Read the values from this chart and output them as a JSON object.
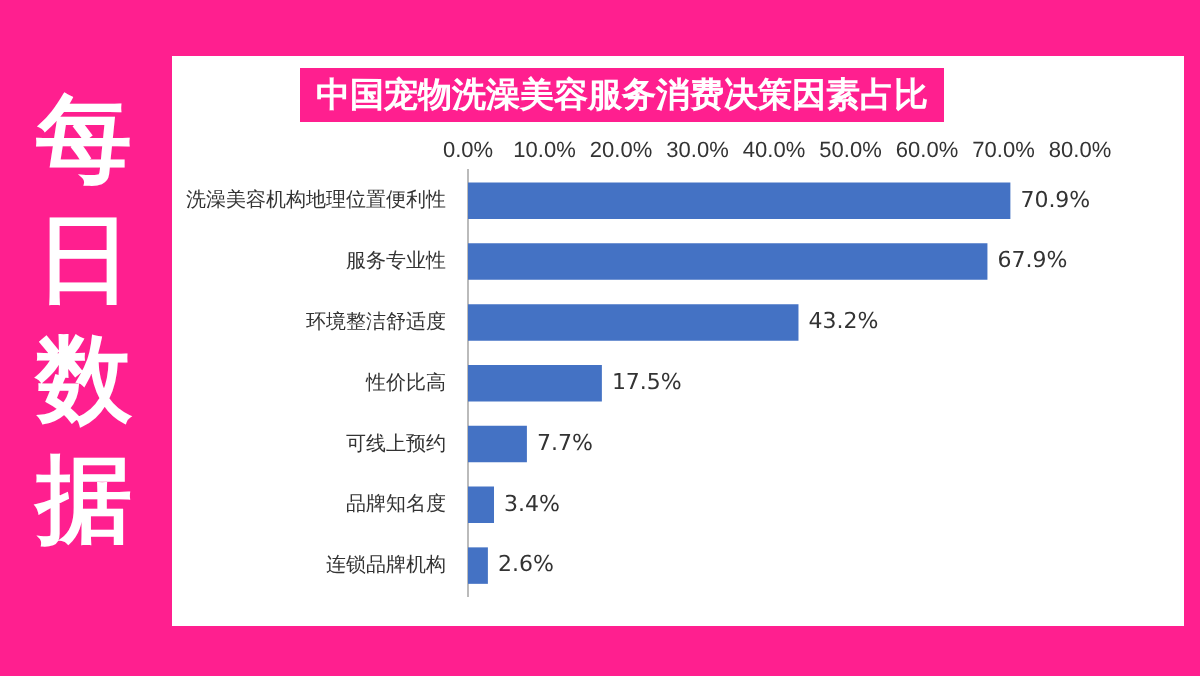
{
  "chart_data": {
    "type": "bar",
    "orientation": "horizontal",
    "title": "中国宠物洗澡美容服务消费决策因素占比",
    "annotations": [
      "每日数据"
    ],
    "categories": [
      "洗澡美容机构地理位置便利性",
      "服务专业性",
      "环境整洁舒适度",
      "性价比高",
      "可线上预约",
      "品牌知名度",
      "连锁品牌机构"
    ],
    "values": [
      70.9,
      67.9,
      43.2,
      17.5,
      7.7,
      3.4,
      2.6
    ],
    "value_labels": [
      "70.9%",
      "67.9%",
      "43.2%",
      "17.5%",
      "7.7%",
      "3.4%",
      "2.6%"
    ],
    "color": "#4472c4",
    "xlim": [
      0,
      80
    ],
    "xticks": [
      {
        "value": 0,
        "label": "0.0%"
      },
      {
        "value": 10,
        "label": "10.0%"
      },
      {
        "value": 20,
        "label": "20.0%"
      },
      {
        "value": 30,
        "label": "30.0%"
      },
      {
        "value": 40,
        "label": "40.0%"
      },
      {
        "value": 50,
        "label": "50.0%"
      },
      {
        "value": 60,
        "label": "60.0%"
      },
      {
        "value": 70,
        "label": "70.0%"
      },
      {
        "value": 80,
        "label": "80.0%"
      }
    ],
    "grid": false,
    "legend": false
  }
}
